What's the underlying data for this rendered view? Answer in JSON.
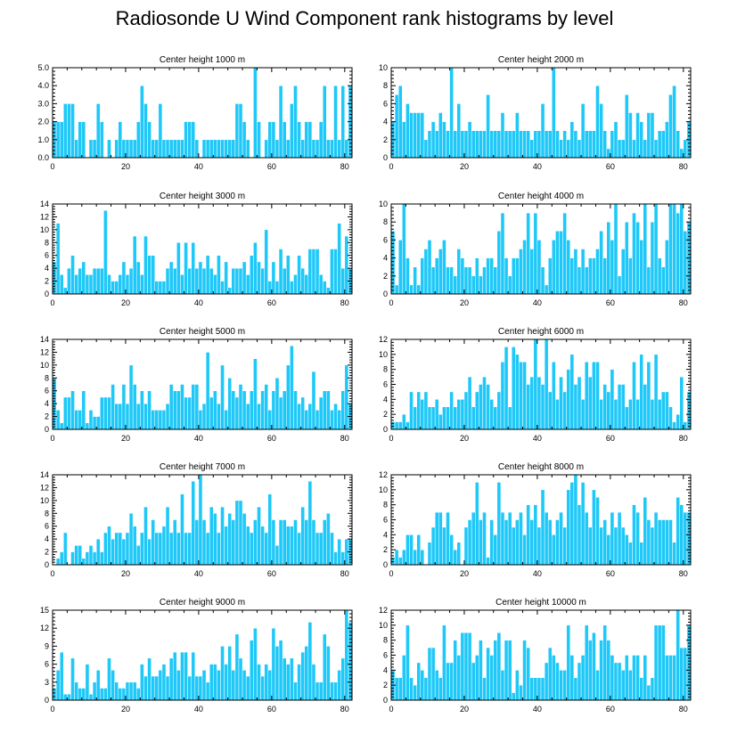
{
  "title": "Radiosonde U Wind Component rank histograms by level",
  "colors": {
    "bar": "#1ec8f8",
    "bar_edge": "#ffffff",
    "axis": "#000000"
  },
  "chart_data": [
    {
      "type": "bar",
      "title": "Center height 1000 m",
      "xlim": [
        0,
        82
      ],
      "ylim": [
        0,
        5
      ],
      "xticks": [
        0,
        20,
        40,
        60,
        80
      ],
      "yticks": [
        0,
        1,
        2,
        3,
        4,
        5
      ],
      "ytick_labels": [
        "0.0",
        "1.0",
        "2.0",
        "3.0",
        "4.0",
        "5.0"
      ],
      "values": [
        2,
        2,
        2,
        3,
        3,
        3,
        1,
        2,
        2,
        0,
        1,
        1,
        3,
        2,
        0,
        1,
        0,
        1,
        2,
        1,
        1,
        1,
        1,
        2,
        4,
        3,
        2,
        1,
        1,
        3,
        1,
        1,
        1,
        1,
        1,
        1,
        2,
        2,
        2,
        1,
        0,
        1,
        1,
        1,
        1,
        1,
        1,
        1,
        1,
        1,
        3,
        3,
        2,
        1,
        0,
        5,
        2,
        0,
        1,
        2,
        2,
        1,
        4,
        2,
        1,
        3,
        4,
        2,
        1,
        2,
        2,
        1,
        1,
        2,
        4,
        1,
        1,
        4,
        1,
        4,
        1,
        4
      ]
    },
    {
      "type": "bar",
      "title": "Center height 2000 m",
      "xlim": [
        0,
        82
      ],
      "ylim": [
        0,
        10
      ],
      "xticks": [
        0,
        20,
        40,
        60,
        80
      ],
      "yticks": [
        0,
        2,
        4,
        6,
        8,
        10
      ],
      "ytick_labels": [
        "0",
        "2",
        "4",
        "6",
        "8",
        "10"
      ],
      "values": [
        4,
        7,
        8,
        4,
        6,
        5,
        5,
        5,
        5,
        2,
        3,
        4,
        3,
        5,
        4,
        3,
        10,
        3,
        6,
        3,
        3,
        4,
        3,
        3,
        3,
        3,
        7,
        3,
        3,
        3,
        5,
        3,
        3,
        3,
        5,
        3,
        3,
        3,
        2,
        3,
        3,
        6,
        3,
        3,
        10,
        3,
        2,
        3,
        2,
        4,
        3,
        2,
        6,
        3,
        3,
        3,
        8,
        6,
        3,
        1,
        3,
        4,
        2,
        2,
        7,
        5,
        2,
        5,
        4,
        2,
        5,
        5,
        2,
        3,
        3,
        4,
        7,
        8,
        3,
        1,
        2,
        4
      ]
    },
    {
      "type": "bar",
      "title": "Center height 3000 m",
      "xlim": [
        0,
        82
      ],
      "ylim": [
        0,
        14
      ],
      "xticks": [
        0,
        20,
        40,
        60,
        80
      ],
      "yticks": [
        0,
        2,
        4,
        6,
        8,
        10,
        12,
        14
      ],
      "ytick_labels": [
        "0",
        "2",
        "4",
        "6",
        "8",
        "10",
        "12",
        "14"
      ],
      "values": [
        5,
        11,
        3,
        1,
        4,
        6,
        3,
        4,
        5,
        3,
        3,
        4,
        4,
        4,
        13,
        3,
        2,
        2,
        3,
        5,
        3,
        4,
        9,
        5,
        3,
        9,
        6,
        6,
        2,
        2,
        2,
        4,
        5,
        4,
        8,
        3,
        8,
        4,
        8,
        4,
        5,
        4,
        6,
        4,
        3,
        6,
        2,
        5,
        1,
        4,
        4,
        4,
        5,
        3,
        6,
        8,
        5,
        4,
        10,
        2,
        5,
        2,
        7,
        4,
        6,
        2,
        3,
        6,
        4,
        3,
        7,
        7,
        7,
        3,
        2,
        1,
        7,
        7,
        11,
        4,
        9,
        4
      ]
    },
    {
      "type": "bar",
      "title": "Center height 4000 m",
      "xlim": [
        0,
        82
      ],
      "ylim": [
        0,
        10
      ],
      "xticks": [
        0,
        20,
        40,
        60,
        80
      ],
      "yticks": [
        0,
        2,
        4,
        6,
        8,
        10
      ],
      "ytick_labels": [
        "0",
        "2",
        "4",
        "6",
        "8",
        "10"
      ],
      "values": [
        7,
        1,
        6,
        10,
        4,
        1,
        3,
        1,
        4,
        5,
        6,
        3,
        4,
        5,
        6,
        3,
        3,
        2,
        5,
        4,
        3,
        3,
        2,
        4,
        2,
        3,
        4,
        4,
        3,
        7,
        9,
        4,
        2,
        4,
        4,
        5,
        6,
        9,
        5,
        9,
        6,
        3,
        1,
        4,
        6,
        7,
        7,
        9,
        6,
        4,
        5,
        3,
        5,
        3,
        4,
        4,
        5,
        7,
        4,
        8,
        6,
        10,
        2,
        5,
        8,
        4,
        9,
        8,
        6,
        10,
        3,
        8,
        10,
        4,
        3,
        6,
        10,
        10,
        9,
        10,
        7,
        8
      ]
    },
    {
      "type": "bar",
      "title": "Center height 5000 m",
      "xlim": [
        0,
        82
      ],
      "ylim": [
        0,
        14
      ],
      "xticks": [
        0,
        20,
        40,
        60,
        80
      ],
      "yticks": [
        0,
        2,
        4,
        6,
        8,
        10,
        12,
        14
      ],
      "ytick_labels": [
        "0",
        "2",
        "4",
        "6",
        "8",
        "10",
        "12",
        "14"
      ],
      "values": [
        8,
        3,
        1,
        5,
        5,
        6,
        3,
        3,
        6,
        1,
        3,
        2,
        2,
        5,
        5,
        5,
        7,
        4,
        4,
        7,
        4,
        10,
        7,
        4,
        6,
        4,
        6,
        3,
        3,
        3,
        3,
        4,
        7,
        6,
        6,
        7,
        5,
        5,
        7,
        7,
        3,
        4,
        12,
        5,
        6,
        4,
        10,
        3,
        8,
        6,
        5,
        7,
        6,
        4,
        6,
        11,
        4,
        6,
        7,
        3,
        6,
        8,
        5,
        6,
        10,
        13,
        6,
        4,
        5,
        3,
        4,
        9,
        3,
        5,
        6,
        6,
        3,
        4,
        3,
        6,
        10,
        4
      ]
    },
    {
      "type": "bar",
      "title": "Center height 6000 m",
      "xlim": [
        0,
        82
      ],
      "ylim": [
        0,
        12
      ],
      "xticks": [
        0,
        20,
        40,
        60,
        80
      ],
      "yticks": [
        0,
        2,
        4,
        6,
        8,
        10,
        12
      ],
      "ytick_labels": [
        "0",
        "2",
        "4",
        "6",
        "8",
        "10",
        "12"
      ],
      "values": [
        1,
        1,
        1,
        2,
        1,
        5,
        3,
        5,
        4,
        5,
        3,
        3,
        4,
        2,
        3,
        3,
        5,
        3,
        4,
        4,
        5,
        7,
        3,
        5,
        6,
        7,
        6,
        4,
        3,
        5,
        9,
        11,
        3,
        11,
        10,
        9,
        9,
        6,
        7,
        12,
        7,
        6,
        12,
        5,
        9,
        4,
        7,
        5,
        8,
        10,
        6,
        7,
        4,
        9,
        7,
        9,
        9,
        4,
        6,
        5,
        8,
        4,
        6,
        6,
        3,
        4,
        9,
        4,
        10,
        6,
        9,
        4,
        10,
        4,
        5,
        5,
        3,
        1,
        2,
        7,
        1,
        5
      ]
    },
    {
      "type": "bar",
      "title": "Center height 7000 m",
      "xlim": [
        0,
        82
      ],
      "ylim": [
        0,
        14
      ],
      "xticks": [
        0,
        20,
        40,
        60,
        80
      ],
      "yticks": [
        0,
        2,
        4,
        6,
        8,
        10,
        12,
        14
      ],
      "ytick_labels": [
        "0",
        "2",
        "4",
        "6",
        "8",
        "10",
        "12",
        "14"
      ],
      "values": [
        0,
        1,
        2,
        5,
        0,
        2,
        3,
        3,
        1,
        2,
        3,
        2,
        4,
        2,
        5,
        6,
        4,
        5,
        5,
        4,
        5,
        8,
        6,
        3,
        5,
        9,
        4,
        7,
        5,
        5,
        6,
        9,
        5,
        7,
        5,
        11,
        5,
        5,
        13,
        7,
        14,
        7,
        5,
        9,
        8,
        5,
        9,
        6,
        8,
        7,
        10,
        10,
        8,
        6,
        5,
        7,
        9,
        6,
        5,
        11,
        7,
        3,
        7,
        7,
        6,
        6,
        7,
        5,
        9,
        7,
        13,
        7,
        5,
        5,
        7,
        8,
        5,
        2,
        4,
        2,
        4,
        4
      ]
    },
    {
      "type": "bar",
      "title": "Center height 8000 m",
      "xlim": [
        0,
        82
      ],
      "ylim": [
        0,
        12
      ],
      "xticks": [
        0,
        20,
        40,
        60,
        80
      ],
      "yticks": [
        0,
        2,
        4,
        6,
        8,
        10,
        12
      ],
      "ytick_labels": [
        "0",
        "2",
        "4",
        "6",
        "8",
        "10",
        "12"
      ],
      "values": [
        1,
        2,
        1,
        2,
        4,
        4,
        2,
        4,
        2,
        0,
        3,
        5,
        7,
        7,
        5,
        7,
        4,
        2,
        3,
        0,
        5,
        6,
        7,
        11,
        6,
        7,
        1,
        6,
        4,
        11,
        7,
        6,
        7,
        5,
        6,
        7,
        4,
        8,
        6,
        8,
        5,
        10,
        7,
        6,
        4,
        6,
        7,
        5,
        10,
        11,
        12,
        8,
        11,
        7,
        5,
        10,
        9,
        5,
        6,
        4,
        7,
        5,
        7,
        5,
        4,
        3,
        8,
        7,
        3,
        9,
        6,
        5,
        7,
        6,
        6,
        6,
        6,
        3,
        9,
        8,
        7,
        7
      ]
    },
    {
      "type": "bar",
      "title": "Center height 9000 m",
      "xlim": [
        0,
        82
      ],
      "ylim": [
        0,
        15
      ],
      "xticks": [
        0,
        20,
        40,
        60,
        80
      ],
      "yticks": [
        0,
        3,
        6,
        9,
        12,
        15
      ],
      "ytick_labels": [
        "0",
        "3",
        "6",
        "9",
        "12",
        "15"
      ],
      "values": [
        2,
        5,
        8,
        1,
        1,
        7,
        3,
        2,
        2,
        6,
        1,
        3,
        5,
        2,
        2,
        7,
        5,
        3,
        2,
        2,
        3,
        3,
        3,
        2,
        6,
        4,
        7,
        4,
        4,
        5,
        6,
        4,
        7,
        8,
        5,
        8,
        8,
        4,
        8,
        4,
        4,
        5,
        3,
        6,
        6,
        5,
        9,
        6,
        9,
        5,
        11,
        7,
        5,
        4,
        10,
        12,
        6,
        4,
        6,
        5,
        12,
        9,
        10,
        7,
        6,
        7,
        3,
        6,
        8,
        9,
        13,
        6,
        3,
        3,
        11,
        9,
        3,
        3,
        5,
        7,
        15,
        13
      ]
    },
    {
      "type": "bar",
      "title": "Center height 10000 m",
      "xlim": [
        0,
        82
      ],
      "ylim": [
        0,
        12
      ],
      "xticks": [
        0,
        20,
        40,
        60,
        80
      ],
      "yticks": [
        0,
        2,
        4,
        6,
        8,
        10,
        12
      ],
      "ytick_labels": [
        "0",
        "2",
        "4",
        "6",
        "8",
        "10",
        "12"
      ],
      "values": [
        4,
        3,
        3,
        6,
        10,
        3,
        2,
        5,
        4,
        3,
        7,
        7,
        4,
        3,
        10,
        5,
        5,
        8,
        6,
        9,
        9,
        9,
        5,
        6,
        8,
        3,
        7,
        6,
        8,
        9,
        4,
        8,
        8,
        1,
        4,
        2,
        8,
        7,
        3,
        3,
        3,
        3,
        5,
        7,
        6,
        5,
        4,
        4,
        10,
        6,
        3,
        5,
        6,
        10,
        8,
        9,
        4,
        8,
        10,
        8,
        6,
        5,
        5,
        4,
        6,
        4,
        6,
        6,
        3,
        6,
        2,
        3,
        10,
        10,
        10,
        6,
        6,
        6,
        12,
        7,
        7,
        10
      ]
    }
  ]
}
